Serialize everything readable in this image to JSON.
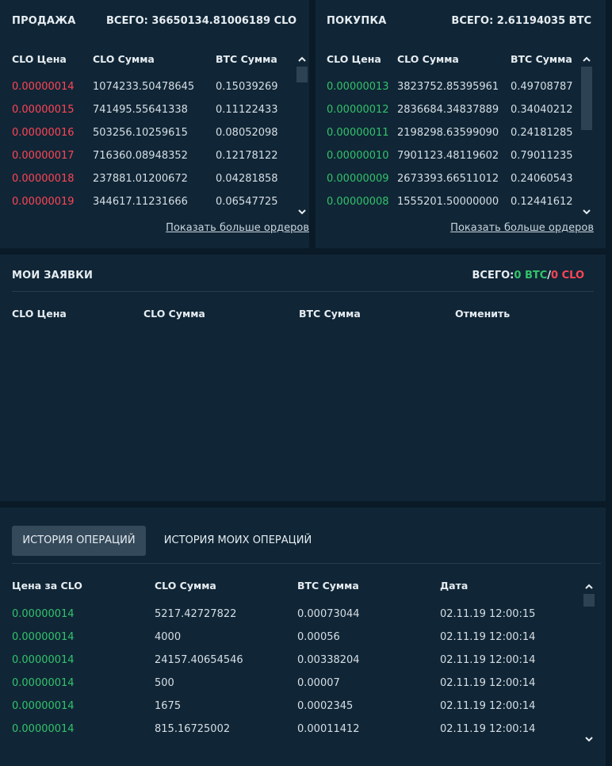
{
  "sell": {
    "title": "ПРОДАЖА",
    "total": "ВСЕГО: 36650134.81006189 CLO",
    "columns": [
      "CLO Цена",
      "CLO Сумма",
      "BTC Сумма"
    ],
    "rows": [
      [
        "0.00000014",
        "1074233.50478645",
        "0.15039269"
      ],
      [
        "0.00000015",
        "741495.55641338",
        "0.11122433"
      ],
      [
        "0.00000016",
        "503256.10259615",
        "0.08052098"
      ],
      [
        "0.00000017",
        "716360.08948352",
        "0.12178122"
      ],
      [
        "0.00000018",
        "237881.01200672",
        "0.04281858"
      ],
      [
        "0.00000019",
        "344617.11231666",
        "0.06547725"
      ]
    ],
    "more": "Показать больше ордеров",
    "price_color": "#ff4455"
  },
  "buy": {
    "title": "ПОКУПКА",
    "total": "ВСЕГО: 2.61194035 BTC",
    "columns": [
      "CLO Цена",
      "CLO Сумма",
      "BTC Сумма"
    ],
    "rows": [
      [
        "0.00000013",
        "3823752.85395961",
        "0.49708787"
      ],
      [
        "0.00000012",
        "2836684.34837889",
        "0.34040212"
      ],
      [
        "0.00000011",
        "2198298.63599090",
        "0.24181285"
      ],
      [
        "0.00000010",
        "7901123.48119602",
        "0.79011235"
      ],
      [
        "0.00000009",
        "2673393.66511012",
        "0.24060543"
      ],
      [
        "0.00000008",
        "1555201.50000000",
        "0.12441612"
      ]
    ],
    "more": "Показать больше ордеров",
    "price_color": "#33c26b"
  },
  "my_orders": {
    "title": "МОИ ЗАЯВКИ",
    "total_label": "ВСЕГО:",
    "total_btc": "0 BTC",
    "separator": "/",
    "total_clo": "0 CLO",
    "columns": [
      "CLO Цена",
      "CLO Сумма",
      "BTC Сумма",
      "Отменить"
    ]
  },
  "history": {
    "tabs": [
      "ИСТОРИЯ ОПЕРАЦИЙ",
      "ИСТОРИЯ МОИХ ОПЕРАЦИЙ"
    ],
    "active_tab": 0,
    "columns": [
      "Цена за CLO",
      "CLO Сумма",
      "BTC Сумма",
      "Дата"
    ],
    "rows": [
      [
        "0.00000014",
        "5217.42727822",
        "0.00073044",
        "02.11.19 12:00:15"
      ],
      [
        "0.00000014",
        "4000",
        "0.00056",
        "02.11.19 12:00:14"
      ],
      [
        "0.00000014",
        "24157.40654546",
        "0.00338204",
        "02.11.19 12:00:14"
      ],
      [
        "0.00000014",
        "500",
        "0.00007",
        "02.11.19 12:00:14"
      ],
      [
        "0.00000014",
        "1675",
        "0.0002345",
        "02.11.19 12:00:14"
      ],
      [
        "0.00000014",
        "815.16725002",
        "0.00011412",
        "02.11.19 12:00:14"
      ]
    ]
  },
  "colors": {
    "sell": "#ff4455",
    "buy": "#33c26b",
    "background": "#0a1a27",
    "panel": "#102636"
  },
  "icons": [
    "chevron-up-icon",
    "chevron-down-icon"
  ]
}
